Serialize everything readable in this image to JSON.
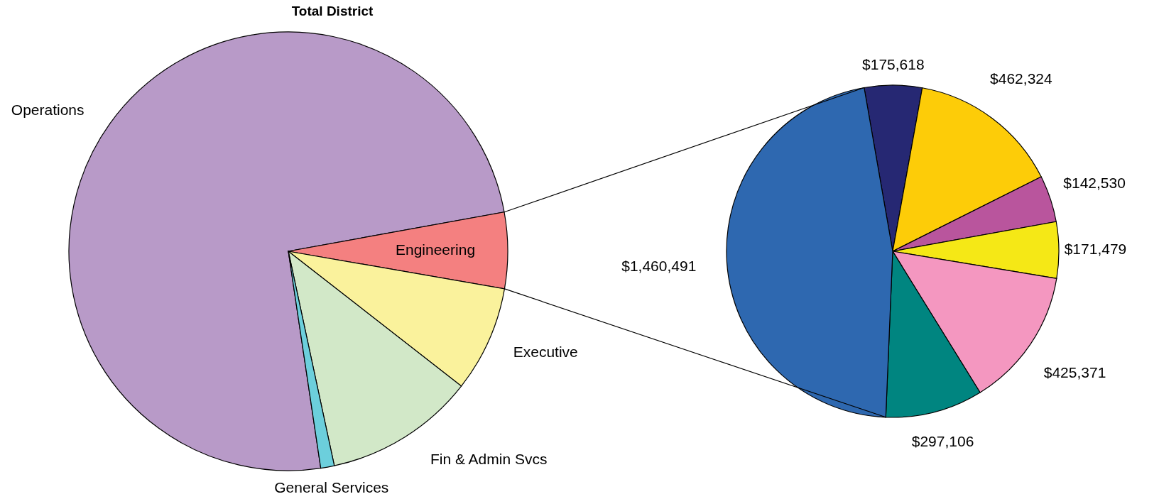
{
  "chart_data": [
    {
      "type": "pie",
      "title": "Total District",
      "categories": [
        "Operations",
        "Engineering",
        "Executive",
        "Fin & Admin Svcs",
        "General Services"
      ],
      "values": [
        74.5,
        5.6,
        7.8,
        11.1,
        1.0
      ],
      "colors": [
        "#b89ac8",
        "#f48080",
        "#faf29c",
        "#d2e8c8",
        "#6ccfdc"
      ]
    },
    {
      "type": "pie",
      "categories": [
        null,
        null,
        null,
        null,
        null,
        null,
        null
      ],
      "values": [
        175618,
        462324,
        142530,
        171479,
        425371,
        297106,
        1460491
      ],
      "value_labels": [
        "$175,618",
        "$462,324",
        "$142,530",
        "$171,479",
        "$425,371",
        "$297,106",
        "$1,460,491"
      ],
      "colors": [
        "#262873",
        "#fdcc08",
        "#b9559d",
        "#f5e816",
        "#f497c0",
        "#008580",
        "#2e68b0"
      ]
    }
  ]
}
